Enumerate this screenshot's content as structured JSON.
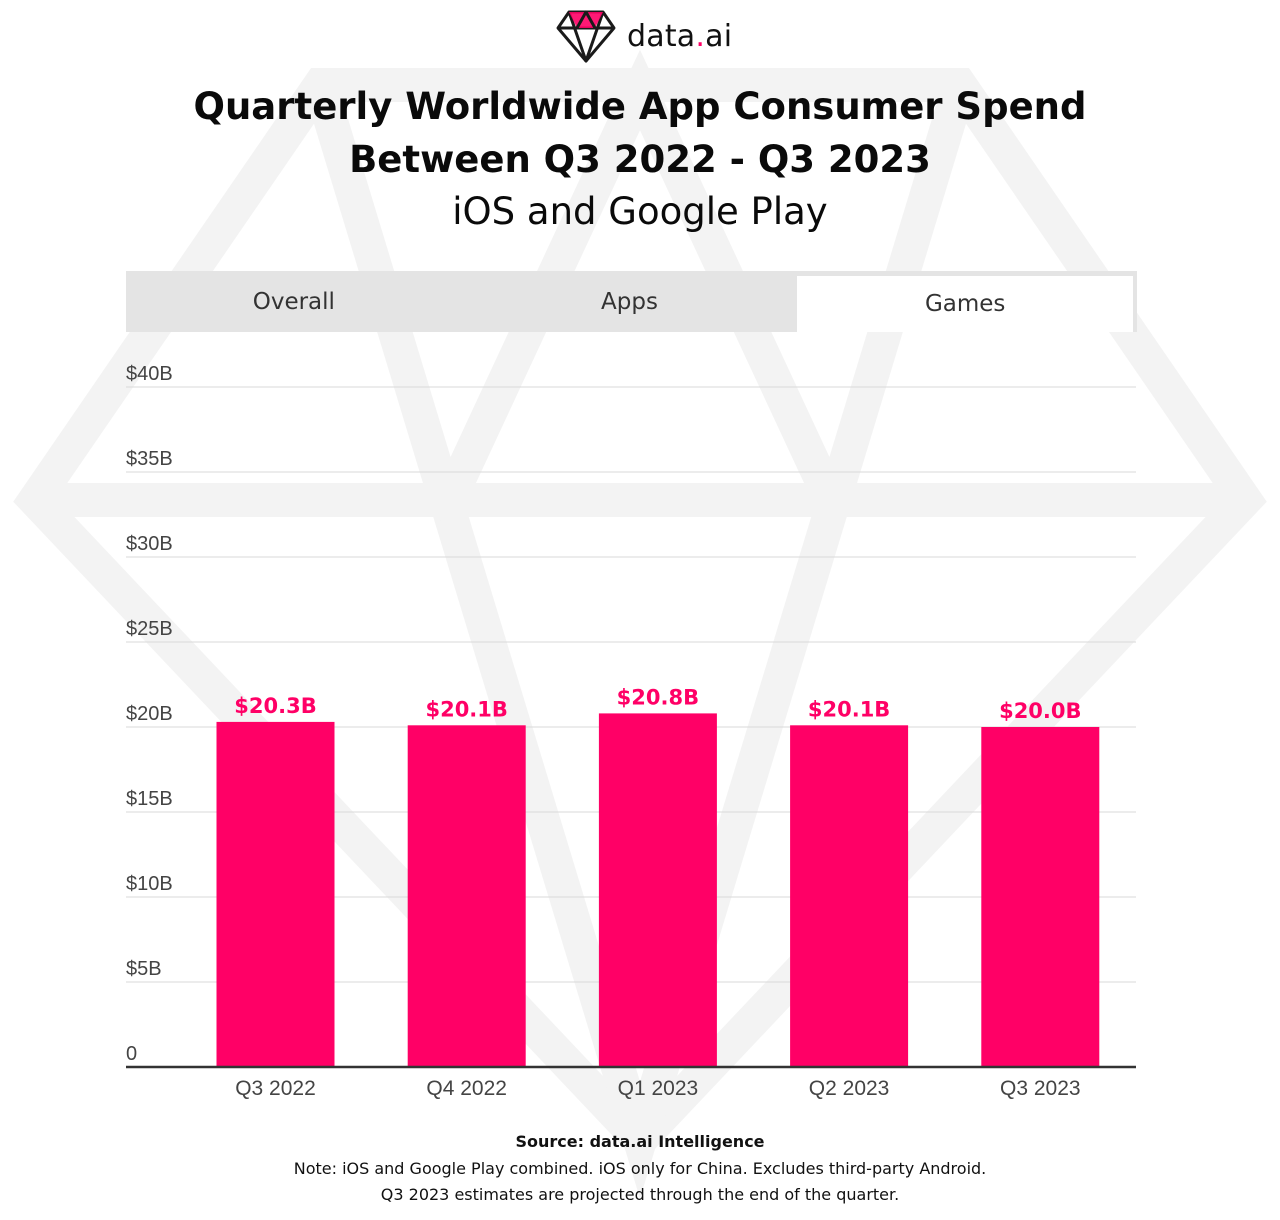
{
  "brand": {
    "logo_text": "data.ai",
    "logo_icon": "diamond-icon",
    "accent_color": "#ff0066"
  },
  "header": {
    "title_line1": "Quarterly Worldwide App Consumer Spend",
    "title_line2": "Between Q3 2022 - Q3 2023",
    "subtitle": "iOS and Google Play"
  },
  "tabs": [
    {
      "label": "Overall",
      "active": false
    },
    {
      "label": "Apps",
      "active": false
    },
    {
      "label": "Games",
      "active": true
    }
  ],
  "chart_data": {
    "type": "bar",
    "categories": [
      "Q3 2022",
      "Q4 2022",
      "Q1 2023",
      "Q2 2023",
      "Q3 2023"
    ],
    "values": [
      20.3,
      20.1,
      20.8,
      20.1,
      20.0
    ],
    "data_labels": [
      "$20.3B",
      "$20.1B",
      "$20.8B",
      "$20.1B",
      "$20.0B"
    ],
    "y_ticks": [
      0,
      5,
      10,
      15,
      20,
      25,
      30,
      35,
      40
    ],
    "y_tick_labels": [
      "0",
      "$5B",
      "$10B",
      "$15B",
      "$20B",
      "$25B",
      "$30B",
      "$35B",
      "$40B"
    ],
    "ylim": [
      0,
      40
    ],
    "grid": true,
    "bar_color": "#ff0066",
    "grid_color": "#d9d9d9",
    "axis_color": "#333333"
  },
  "footer": {
    "source": "Source: data.ai Intelligence",
    "note1": "Note: iOS and Google Play combined. iOS only for China. Excludes third-party Android.",
    "note2": "Q3 2023 estimates are projected through the end of the quarter."
  }
}
